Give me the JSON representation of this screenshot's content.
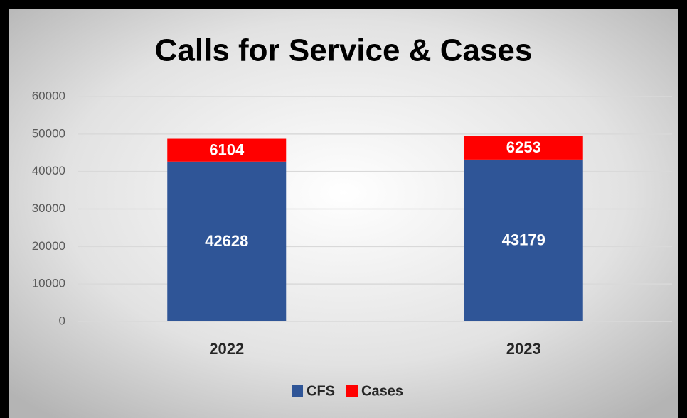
{
  "chart_data": {
    "type": "stacked_bar",
    "title": "Calls for Service & Cases",
    "categories": [
      "2022",
      "2023"
    ],
    "series": [
      {
        "name": "CFS",
        "color": "#2f5597",
        "values": [
          42628,
          43179
        ]
      },
      {
        "name": "Cases",
        "color": "#ff0000",
        "values": [
          6104,
          6253
        ]
      }
    ],
    "ylim": [
      0,
      60000
    ],
    "yticks": [
      0,
      10000,
      20000,
      30000,
      40000,
      50000,
      60000
    ],
    "grid": true,
    "legend": "bottom"
  }
}
